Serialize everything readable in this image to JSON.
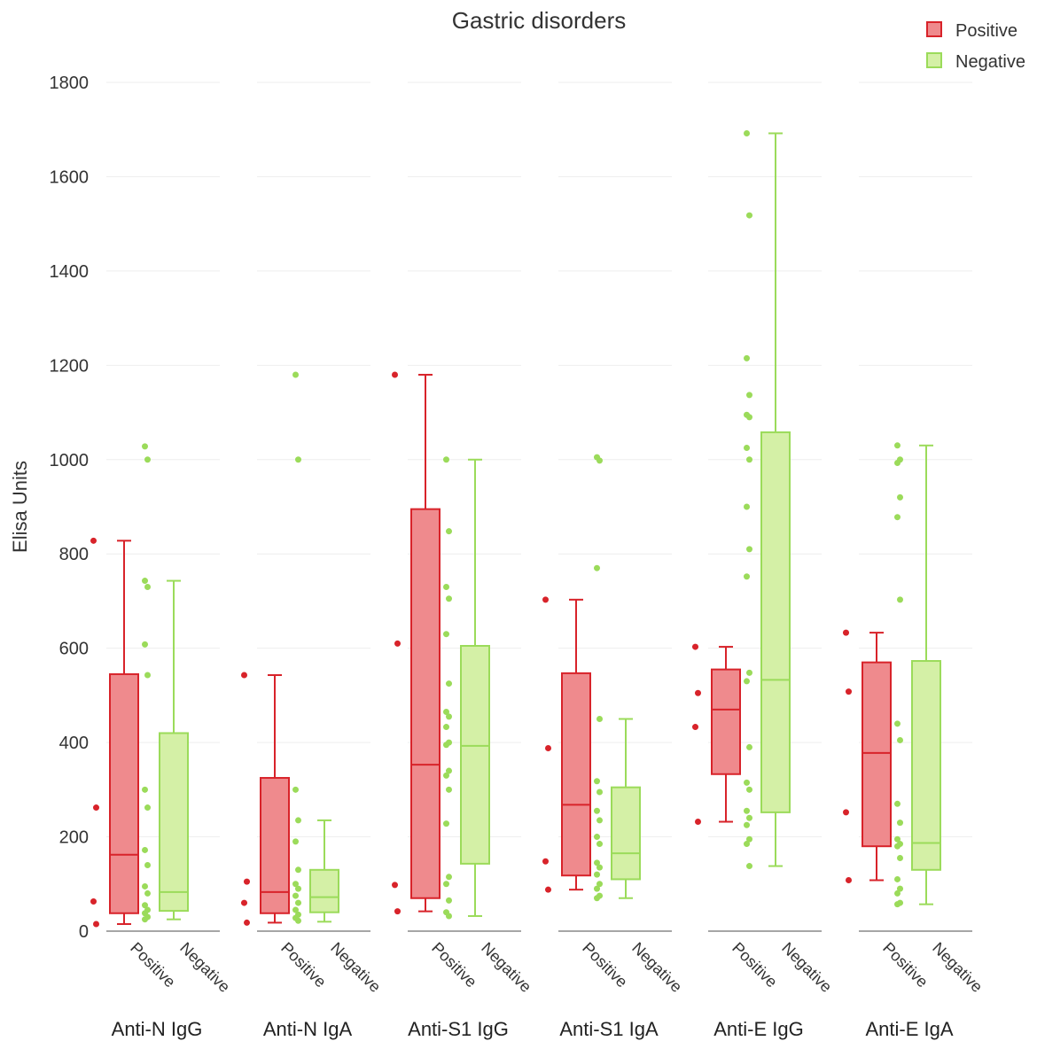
{
  "chart_data": {
    "type": "box",
    "title": "Gastric disorders",
    "ylabel": "Elisa Units",
    "ylim": [
      0,
      1800
    ],
    "yticks": [
      0,
      200,
      400,
      600,
      800,
      1000,
      1200,
      1400,
      1600,
      1800
    ],
    "grid": "horizontal",
    "legend_placement": "top-right",
    "legend": [
      {
        "name": "Positive",
        "fill": "#ef8a8d",
        "stroke": "#d8232a"
      },
      {
        "name": "Negative",
        "fill": "#d4f0a6",
        "stroke": "#9bdb5a"
      }
    ],
    "group_labels": [
      "Positive",
      "Negative"
    ],
    "colors": {
      "positive_fill": "#ef8a8d",
      "positive_stroke": "#d8232a",
      "negative_fill": "#d4f0a6",
      "negative_stroke": "#9bdb5a",
      "grid": "#eeeeee",
      "axis": "#888888"
    },
    "panels": [
      {
        "label": "Anti-N IgG",
        "positive": {
          "min": 15,
          "q1": 38,
          "median": 162,
          "q3": 545,
          "max": 828,
          "points": [
            828,
            262,
            63,
            15
          ]
        },
        "negative": {
          "min": 25,
          "q1": 43,
          "median": 83,
          "q3": 420,
          "max": 743,
          "points": [
            1028,
            1000,
            743,
            730,
            608,
            543,
            300,
            262,
            172,
            140,
            95,
            80,
            55,
            45,
            38,
            30,
            25
          ]
        }
      },
      {
        "label": "Anti-N IgA",
        "positive": {
          "min": 18,
          "q1": 38,
          "median": 83,
          "q3": 325,
          "max": 543,
          "points": [
            543,
            105,
            60,
            18
          ]
        },
        "negative": {
          "min": 20,
          "q1": 40,
          "median": 72,
          "q3": 130,
          "max": 235,
          "points": [
            1180,
            1000,
            300,
            235,
            190,
            130,
            100,
            90,
            75,
            60,
            45,
            35,
            28,
            22
          ]
        }
      },
      {
        "label": "Anti-S1 IgG",
        "positive": {
          "min": 42,
          "q1": 70,
          "median": 353,
          "q3": 895,
          "max": 1180,
          "points": [
            1180,
            610,
            98,
            42
          ]
        },
        "negative": {
          "min": 32,
          "q1": 143,
          "median": 393,
          "q3": 605,
          "max": 1000,
          "points": [
            1000,
            848,
            730,
            705,
            630,
            525,
            465,
            455,
            433,
            400,
            395,
            340,
            330,
            300,
            228,
            115,
            100,
            65,
            40,
            32
          ]
        }
      },
      {
        "label": "Anti-S1 IgA",
        "positive": {
          "min": 88,
          "q1": 118,
          "median": 268,
          "q3": 547,
          "max": 703,
          "points": [
            703,
            388,
            148,
            88
          ]
        },
        "negative": {
          "min": 70,
          "q1": 110,
          "median": 165,
          "q3": 305,
          "max": 450,
          "points": [
            1005,
            998,
            770,
            450,
            318,
            295,
            255,
            235,
            200,
            185,
            145,
            135,
            120,
            100,
            90,
            75,
            70
          ]
        }
      },
      {
        "label": "Anti-E IgG",
        "positive": {
          "min": 232,
          "q1": 333,
          "median": 470,
          "q3": 555,
          "max": 603,
          "points": [
            603,
            505,
            433,
            232
          ]
        },
        "negative": {
          "min": 138,
          "q1": 252,
          "median": 533,
          "q3": 1058,
          "max": 1692,
          "points": [
            1692,
            1518,
            1215,
            1137,
            1095,
            1090,
            1025,
            1000,
            900,
            810,
            752,
            548,
            530,
            390,
            315,
            300,
            255,
            240,
            225,
            195,
            185,
            138
          ]
        }
      },
      {
        "label": "Anti-E IgA",
        "positive": {
          "min": 108,
          "q1": 180,
          "median": 378,
          "q3": 570,
          "max": 633,
          "points": [
            633,
            508,
            252,
            108
          ]
        },
        "negative": {
          "min": 57,
          "q1": 130,
          "median": 187,
          "q3": 573,
          "max": 1030,
          "points": [
            1030,
            1000,
            993,
            920,
            878,
            703,
            440,
            405,
            270,
            230,
            195,
            185,
            180,
            155,
            110,
            90,
            80,
            60,
            57
          ]
        }
      }
    ]
  }
}
